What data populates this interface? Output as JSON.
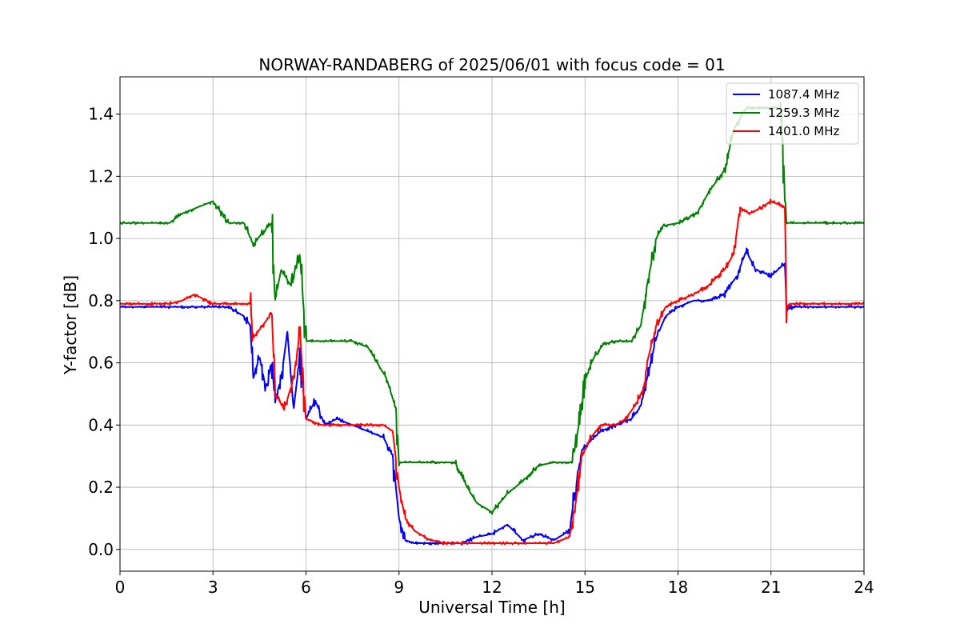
{
  "chart_data": {
    "type": "line",
    "title": "NORWAY-RANDABERG of 2025/06/01 with focus code = 01",
    "xlabel": "Universal Time [h]",
    "ylabel": "Y-factor [dB]",
    "xlim": [
      0,
      24
    ],
    "ylim": [
      -0.07,
      1.52
    ],
    "xticks": [
      0,
      3,
      6,
      9,
      12,
      15,
      18,
      21,
      24
    ],
    "yticks": [
      0.0,
      0.2,
      0.4,
      0.6,
      0.8,
      1.0,
      1.2,
      1.4
    ],
    "xtick_labels": [
      "0",
      "3",
      "6",
      "9",
      "12",
      "15",
      "18",
      "21",
      "24"
    ],
    "ytick_labels": [
      "0.0",
      "0.2",
      "0.4",
      "0.6",
      "0.8",
      "1.0",
      "1.2",
      "1.4"
    ],
    "grid": true,
    "legend_position": "top-right",
    "series": [
      {
        "name": "1087.4 MHz",
        "color": "#0000ff",
        "x": [
          0,
          1.6,
          2.5,
          3.5,
          4.0,
          4.2,
          4.3,
          4.5,
          4.7,
          4.9,
          5.0,
          5.2,
          5.4,
          5.6,
          5.8,
          6.0,
          6.3,
          6.6,
          7.0,
          7.5,
          8.0,
          8.5,
          8.8,
          9.0,
          9.2,
          9.5,
          10,
          11,
          11.5,
          12,
          12.5,
          13,
          13.5,
          14,
          14.5,
          14.7,
          14.9,
          15.2,
          15.5,
          16,
          16.5,
          16.8,
          17.0,
          17.3,
          17.6,
          18.0,
          18.5,
          19,
          19.5,
          19.9,
          20.2,
          20.5,
          21,
          21.45,
          21.5,
          21.7,
          22,
          23,
          24
        ],
        "y": [
          0.78,
          0.78,
          0.78,
          0.78,
          0.75,
          0.72,
          0.55,
          0.62,
          0.52,
          0.6,
          0.48,
          0.55,
          0.7,
          0.45,
          0.62,
          0.42,
          0.48,
          0.4,
          0.42,
          0.4,
          0.38,
          0.36,
          0.3,
          0.1,
          0.03,
          0.02,
          0.02,
          0.02,
          0.04,
          0.05,
          0.08,
          0.03,
          0.05,
          0.03,
          0.06,
          0.2,
          0.32,
          0.35,
          0.38,
          0.4,
          0.42,
          0.46,
          0.55,
          0.68,
          0.75,
          0.78,
          0.8,
          0.8,
          0.82,
          0.88,
          0.96,
          0.9,
          0.88,
          0.92,
          0.77,
          0.78,
          0.78,
          0.78,
          0.78
        ]
      },
      {
        "name": "1259.3 MHz",
        "color": "#008000",
        "x": [
          0,
          1.6,
          2.0,
          2.5,
          3.0,
          3.5,
          4.0,
          4.3,
          4.6,
          4.9,
          5.0,
          5.2,
          5.5,
          5.8,
          6.0,
          6.2,
          6.5,
          7.0,
          7.5,
          8.0,
          8.3,
          8.6,
          8.9,
          9.0,
          9.3,
          10,
          10.8,
          11.2,
          11.5,
          12,
          12.5,
          13,
          13.5,
          14,
          14.3,
          14.6,
          14.8,
          15.0,
          15.3,
          15.6,
          16,
          16.5,
          16.8,
          17.0,
          17.3,
          17.5,
          18,
          18.6,
          19,
          19.5,
          19.8,
          20.2,
          20.5,
          21.0,
          21.3,
          21.5,
          21.6,
          22,
          23,
          24
        ],
        "y": [
          1.05,
          1.05,
          1.08,
          1.1,
          1.12,
          1.05,
          1.05,
          0.98,
          1.02,
          1.05,
          0.8,
          0.9,
          0.85,
          0.95,
          0.67,
          0.67,
          0.67,
          0.67,
          0.67,
          0.65,
          0.6,
          0.55,
          0.45,
          0.28,
          0.28,
          0.28,
          0.28,
          0.2,
          0.15,
          0.12,
          0.18,
          0.22,
          0.27,
          0.28,
          0.28,
          0.28,
          0.4,
          0.55,
          0.62,
          0.66,
          0.67,
          0.67,
          0.72,
          0.85,
          1.0,
          1.04,
          1.05,
          1.08,
          1.15,
          1.22,
          1.35,
          1.42,
          1.42,
          1.42,
          1.42,
          1.05,
          1.05,
          1.05,
          1.05,
          1.05
        ]
      },
      {
        "name": "1401.0 MHz",
        "color": "#ff0000",
        "x": [
          0,
          1.6,
          2.0,
          2.4,
          3.0,
          3.5,
          4.2,
          4.3,
          4.6,
          4.9,
          5.0,
          5.3,
          5.6,
          5.8,
          6.0,
          6.5,
          7.0,
          7.5,
          8.0,
          8.5,
          8.8,
          9.0,
          9.2,
          9.5,
          10,
          10.5,
          11,
          12,
          12.5,
          13,
          13.5,
          14,
          14.5,
          14.7,
          14.9,
          15.2,
          15.5,
          16,
          16.3,
          16.6,
          16.9,
          17.0,
          17.3,
          17.6,
          18.0,
          18.5,
          19,
          19.5,
          19.8,
          20.0,
          20.3,
          20.7,
          21.0,
          21.45,
          21.5,
          21.6,
          22,
          23,
          24
        ],
        "y": [
          0.79,
          0.79,
          0.8,
          0.82,
          0.79,
          0.79,
          0.79,
          0.68,
          0.72,
          0.76,
          0.5,
          0.45,
          0.55,
          0.7,
          0.42,
          0.4,
          0.4,
          0.4,
          0.4,
          0.4,
          0.38,
          0.2,
          0.1,
          0.06,
          0.03,
          0.02,
          0.02,
          0.02,
          0.02,
          0.02,
          0.02,
          0.02,
          0.04,
          0.15,
          0.3,
          0.36,
          0.4,
          0.4,
          0.42,
          0.46,
          0.52,
          0.6,
          0.72,
          0.78,
          0.8,
          0.82,
          0.85,
          0.9,
          0.95,
          1.1,
          1.08,
          1.1,
          1.12,
          1.1,
          0.78,
          0.79,
          0.79,
          0.79,
          0.79
        ]
      }
    ]
  }
}
